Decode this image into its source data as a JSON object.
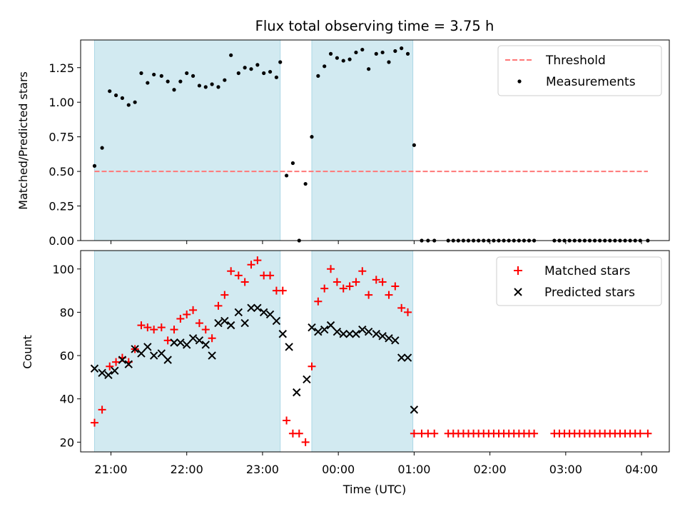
{
  "chart_data": [
    {
      "type": "scatter",
      "title": "Flux total observing time = 3.75 h",
      "xlabel": "",
      "ylabel": "Matched/Predicted stars",
      "ylim": [
        0,
        1.45
      ],
      "yticks": [
        "0.00",
        "0.25",
        "0.50",
        "0.75",
        "1.00",
        "1.25"
      ],
      "xlim": [
        "20:36",
        "04:22"
      ],
      "xticks": [
        "21:00",
        "22:00",
        "23:00",
        "00:00",
        "01:00",
        "02:00",
        "03:00",
        "04:00"
      ],
      "show_xtick_labels": false,
      "shaded_intervals": [
        [
          "20:47",
          "23:14"
        ],
        [
          "23:39",
          "00:59"
        ]
      ],
      "shade_color": "#add8e6",
      "threshold": {
        "name": "Threshold",
        "value": 0.5,
        "x_range": [
          "20:47",
          "04:05"
        ],
        "color": "#ff7777",
        "style": "dashed"
      },
      "legend": {
        "position": "top-right",
        "entries": [
          "Threshold",
          "Measurements"
        ]
      },
      "series": [
        {
          "name": "Measurements",
          "color": "#000000",
          "marker": "dot",
          "x": [
            "20:47",
            "20:53",
            "20:59",
            "21:04",
            "21:09",
            "21:14",
            "21:19",
            "21:24",
            "21:29",
            "21:34",
            "21:40",
            "21:45",
            "21:50",
            "21:55",
            "22:00",
            "22:05",
            "22:10",
            "22:15",
            "22:20",
            "22:25",
            "22:30",
            "22:35",
            "22:41",
            "22:46",
            "22:51",
            "22:56",
            "23:01",
            "23:06",
            "23:11",
            "23:14",
            "23:19",
            "23:24",
            "23:29",
            "23:34",
            "23:39",
            "23:44",
            "23:49",
            "23:54",
            "23:59",
            "00:04",
            "00:09",
            "00:14",
            "00:19",
            "00:24",
            "00:30",
            "00:35",
            "00:40",
            "00:45",
            "00:50",
            "00:55",
            "01:00",
            "01:06",
            "01:11",
            "01:16",
            "01:27",
            "01:31",
            "01:35",
            "01:39",
            "01:43",
            "01:47",
            "01:51",
            "01:55",
            "01:59",
            "02:03",
            "02:07",
            "02:11",
            "02:15",
            "02:19",
            "02:23",
            "02:27",
            "02:31",
            "02:35",
            "02:51",
            "02:55",
            "02:59",
            "03:03",
            "03:07",
            "03:11",
            "03:15",
            "03:19",
            "03:23",
            "03:27",
            "03:31",
            "03:35",
            "03:39",
            "03:43",
            "03:47",
            "03:51",
            "03:55",
            "03:59",
            "04:05"
          ],
          "y": [
            0.54,
            0.67,
            1.08,
            1.05,
            1.03,
            0.98,
            1.0,
            1.21,
            1.14,
            1.2,
            1.19,
            1.15,
            1.09,
            1.15,
            1.21,
            1.19,
            1.12,
            1.11,
            1.13,
            1.11,
            1.16,
            1.34,
            1.21,
            1.25,
            1.24,
            1.27,
            1.21,
            1.22,
            1.18,
            1.29,
            0.47,
            0.56,
            0.0,
            0.41,
            0.75,
            1.19,
            1.26,
            1.35,
            1.32,
            1.3,
            1.31,
            1.36,
            1.38,
            1.24,
            1.35,
            1.36,
            1.29,
            1.37,
            1.39,
            1.35,
            0.69,
            0.0,
            0.0,
            0.0,
            0.0,
            0.0,
            0.0,
            0.0,
            0.0,
            0.0,
            0.0,
            0.0,
            0.0,
            0.0,
            0.0,
            0.0,
            0.0,
            0.0,
            0.0,
            0.0,
            0.0,
            0.0,
            0.0,
            0.0,
            0.0,
            0.0,
            0.0,
            0.0,
            0.0,
            0.0,
            0.0,
            0.0,
            0.0,
            0.0,
            0.0,
            0.0,
            0.0,
            0.0,
            0.0,
            0.0,
            0.0
          ]
        }
      ]
    },
    {
      "type": "scatter",
      "title": "",
      "xlabel": "Time (UTC)",
      "ylabel": "Count",
      "ylim": [
        15.5,
        108.5
      ],
      "yticks": [
        "20",
        "40",
        "60",
        "80",
        "100"
      ],
      "xlim": [
        "20:36",
        "04:22"
      ],
      "xticks": [
        "21:00",
        "22:00",
        "23:00",
        "00:00",
        "01:00",
        "02:00",
        "03:00",
        "04:00"
      ],
      "shaded_intervals": [
        [
          "20:47",
          "23:14"
        ],
        [
          "23:39",
          "00:59"
        ]
      ],
      "shade_color": "#add8e6",
      "legend": {
        "position": "top-right",
        "entries": [
          "Matched stars",
          "Predicted stars"
        ]
      },
      "series": [
        {
          "name": "Matched stars",
          "color": "#ff0000",
          "marker": "plus",
          "points": [
            [
              "20:47",
              29
            ],
            [
              "20:53",
              35
            ],
            [
              "20:59",
              55
            ],
            [
              "21:04",
              57
            ],
            [
              "21:09",
              59
            ],
            [
              "21:14",
              57
            ],
            [
              "21:19",
              63
            ],
            [
              "21:24",
              74
            ],
            [
              "21:29",
              73
            ],
            [
              "21:34",
              72
            ],
            [
              "21:40",
              73
            ],
            [
              "21:45",
              67
            ],
            [
              "21:50",
              72
            ],
            [
              "21:55",
              77
            ],
            [
              "22:00",
              79
            ],
            [
              "22:05",
              81
            ],
            [
              "22:10",
              75
            ],
            [
              "22:15",
              72
            ],
            [
              "22:20",
              68
            ],
            [
              "22:25",
              83
            ],
            [
              "22:30",
              88
            ],
            [
              "22:35",
              99
            ],
            [
              "22:41",
              97
            ],
            [
              "22:46",
              94
            ],
            [
              "22:51",
              102
            ],
            [
              "22:56",
              104
            ],
            [
              "23:01",
              97
            ],
            [
              "23:06",
              97
            ],
            [
              "23:11",
              90
            ],
            [
              "23:16",
              90
            ],
            [
              "23:19",
              30
            ],
            [
              "23:24",
              24
            ],
            [
              "23:29",
              24
            ],
            [
              "23:34",
              20
            ],
            [
              "23:39",
              55
            ],
            [
              "23:44",
              85
            ],
            [
              "23:49",
              91
            ],
            [
              "23:54",
              100
            ],
            [
              "23:59",
              94
            ],
            [
              "00:04",
              91
            ],
            [
              "00:09",
              92
            ],
            [
              "00:14",
              94
            ],
            [
              "00:19",
              99
            ],
            [
              "00:24",
              88
            ],
            [
              "00:30",
              95
            ],
            [
              "00:35",
              94
            ],
            [
              "00:40",
              88
            ],
            [
              "00:45",
              92
            ],
            [
              "00:50",
              82
            ],
            [
              "00:55",
              80
            ],
            [
              "01:00",
              24
            ],
            [
              "01:06",
              24
            ],
            [
              "01:11",
              24
            ],
            [
              "01:16",
              24
            ],
            [
              "01:27",
              24
            ],
            [
              "01:31",
              24
            ],
            [
              "01:35",
              24
            ],
            [
              "01:39",
              24
            ],
            [
              "01:43",
              24
            ],
            [
              "01:47",
              24
            ],
            [
              "01:51",
              24
            ],
            [
              "01:55",
              24
            ],
            [
              "01:59",
              24
            ],
            [
              "02:03",
              24
            ],
            [
              "02:07",
              24
            ],
            [
              "02:11",
              24
            ],
            [
              "02:15",
              24
            ],
            [
              "02:19",
              24
            ],
            [
              "02:23",
              24
            ],
            [
              "02:27",
              24
            ],
            [
              "02:31",
              24
            ],
            [
              "02:35",
              24
            ],
            [
              "02:51",
              24
            ],
            [
              "02:55",
              24
            ],
            [
              "02:59",
              24
            ],
            [
              "03:03",
              24
            ],
            [
              "03:07",
              24
            ],
            [
              "03:11",
              24
            ],
            [
              "03:15",
              24
            ],
            [
              "03:19",
              24
            ],
            [
              "03:23",
              24
            ],
            [
              "03:27",
              24
            ],
            [
              "03:31",
              24
            ],
            [
              "03:35",
              24
            ],
            [
              "03:39",
              24
            ],
            [
              "03:43",
              24
            ],
            [
              "03:47",
              24
            ],
            [
              "03:51",
              24
            ],
            [
              "03:55",
              24
            ],
            [
              "03:59",
              24
            ],
            [
              "04:05",
              24
            ]
          ]
        },
        {
          "name": "Predicted stars",
          "color": "#000000",
          "marker": "x",
          "points": [
            [
              "20:47",
              54
            ],
            [
              "20:53",
              52
            ],
            [
              "20:58",
              51
            ],
            [
              "21:03",
              53
            ],
            [
              "21:09",
              58
            ],
            [
              "21:14",
              56
            ],
            [
              "21:19",
              63
            ],
            [
              "21:24",
              61
            ],
            [
              "21:29",
              64
            ],
            [
              "21:34",
              60
            ],
            [
              "21:40",
              61
            ],
            [
              "21:45",
              58
            ],
            [
              "21:50",
              66
            ],
            [
              "21:55",
              66
            ],
            [
              "22:00",
              65
            ],
            [
              "22:05",
              68
            ],
            [
              "22:10",
              67
            ],
            [
              "22:15",
              65
            ],
            [
              "22:20",
              60
            ],
            [
              "22:25",
              75
            ],
            [
              "22:30",
              76
            ],
            [
              "22:35",
              74
            ],
            [
              "22:41",
              80
            ],
            [
              "22:46",
              75
            ],
            [
              "22:51",
              82
            ],
            [
              "22:56",
              82
            ],
            [
              "23:01",
              80
            ],
            [
              "23:06",
              79
            ],
            [
              "23:11",
              76
            ],
            [
              "23:16",
              70
            ],
            [
              "23:21",
              64
            ],
            [
              "23:27",
              43
            ],
            [
              "23:35",
              49
            ],
            [
              "23:39",
              73
            ],
            [
              "23:44",
              71
            ],
            [
              "23:49",
              72
            ],
            [
              "23:54",
              74
            ],
            [
              "23:59",
              71
            ],
            [
              "00:04",
              70
            ],
            [
              "00:09",
              70
            ],
            [
              "00:14",
              70
            ],
            [
              "00:19",
              72
            ],
            [
              "00:24",
              71
            ],
            [
              "00:30",
              70
            ],
            [
              "00:35",
              69
            ],
            [
              "00:40",
              68
            ],
            [
              "00:45",
              67
            ],
            [
              "00:50",
              59
            ],
            [
              "00:55",
              59
            ],
            [
              "01:00",
              35
            ]
          ]
        }
      ]
    }
  ]
}
